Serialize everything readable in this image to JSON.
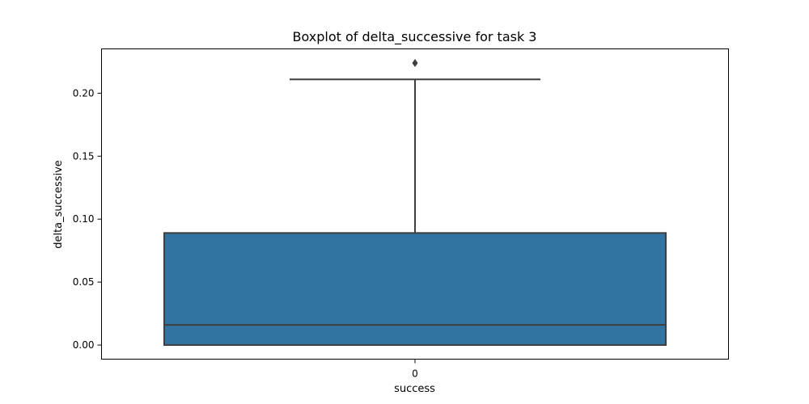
{
  "chart_data": {
    "type": "box",
    "title": "Boxplot of delta_successive for task 3",
    "xlabel": "success",
    "ylabel": "delta_successive",
    "categories": [
      "0"
    ],
    "boxes": [
      {
        "category": "0",
        "whisker_low": 0.0,
        "q1": 0.0,
        "median": 0.016,
        "q3": 0.089,
        "whisker_high": 0.211,
        "outliers": [
          0.224
        ]
      }
    ],
    "yticks": [
      0.0,
      0.05,
      0.1,
      0.15,
      0.2
    ],
    "ytick_labels": [
      "0.00",
      "0.05",
      "0.10",
      "0.15",
      "0.20"
    ],
    "ylim": [
      -0.0112,
      0.2352
    ],
    "grid": false,
    "colors": {
      "box_fill": "#3274a1",
      "line": "#3f3f3f"
    }
  }
}
